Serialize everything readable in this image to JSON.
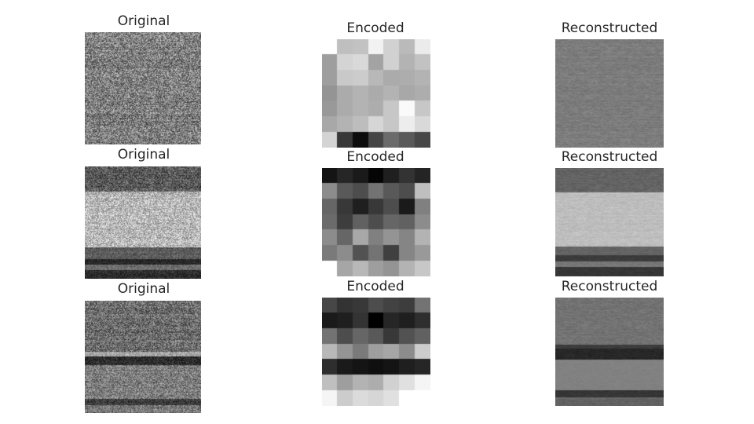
{
  "rows": [
    {
      "original_title": "Original",
      "encoded_title": "Encoded",
      "reconstructed_title": "Reconstructed",
      "encoded_grid": [
        [
          1.0,
          0.75,
          0.76,
          0.95,
          0.82,
          0.73,
          0.92
        ],
        [
          0.62,
          0.83,
          0.85,
          0.64,
          0.82,
          0.7,
          0.76
        ],
        [
          0.62,
          0.79,
          0.8,
          0.72,
          0.67,
          0.68,
          0.7
        ],
        [
          0.58,
          0.67,
          0.7,
          0.67,
          0.7,
          0.66,
          0.68
        ],
        [
          0.6,
          0.67,
          0.7,
          0.68,
          0.78,
          0.98,
          0.78
        ],
        [
          0.66,
          0.7,
          0.74,
          0.84,
          0.78,
          0.93,
          0.85
        ],
        [
          0.83,
          0.22,
          0.05,
          0.27,
          0.42,
          0.35,
          0.28
        ]
      ]
    },
    {
      "original_title": "Original",
      "encoded_title": "Encoded",
      "reconstructed_title": "Reconstructed",
      "encoded_grid": [
        [
          0.08,
          0.15,
          0.1,
          0.02,
          0.12,
          0.2,
          0.14
        ],
        [
          0.55,
          0.35,
          0.3,
          0.45,
          0.35,
          0.3,
          0.75
        ],
        [
          0.4,
          0.22,
          0.12,
          0.22,
          0.3,
          0.1,
          0.5
        ],
        [
          0.42,
          0.24,
          0.38,
          0.3,
          0.4,
          0.38,
          0.55
        ],
        [
          0.55,
          0.4,
          0.66,
          0.5,
          0.58,
          0.52,
          0.7
        ],
        [
          0.48,
          0.55,
          0.32,
          0.45,
          0.25,
          0.52,
          0.6
        ],
        [
          1.0,
          0.65,
          0.72,
          0.62,
          0.58,
          0.7,
          0.78
        ]
      ]
    },
    {
      "original_title": "Original",
      "encoded_title": "Encoded",
      "reconstructed_title": "Reconstructed",
      "encoded_grid": [
        [
          0.28,
          0.2,
          0.22,
          0.3,
          0.26,
          0.24,
          0.45
        ],
        [
          0.1,
          0.12,
          0.2,
          0.0,
          0.15,
          0.12,
          0.18
        ],
        [
          0.45,
          0.3,
          0.4,
          0.35,
          0.22,
          0.32,
          0.38
        ],
        [
          0.72,
          0.58,
          0.48,
          0.62,
          0.65,
          0.55,
          0.8
        ],
        [
          0.18,
          0.1,
          0.08,
          0.06,
          0.08,
          0.12,
          0.15
        ],
        [
          0.75,
          0.62,
          0.7,
          0.68,
          0.82,
          0.88,
          0.96
        ],
        [
          0.96,
          0.8,
          0.86,
          0.84,
          0.88,
          1.0,
          1.0
        ]
      ]
    }
  ]
}
